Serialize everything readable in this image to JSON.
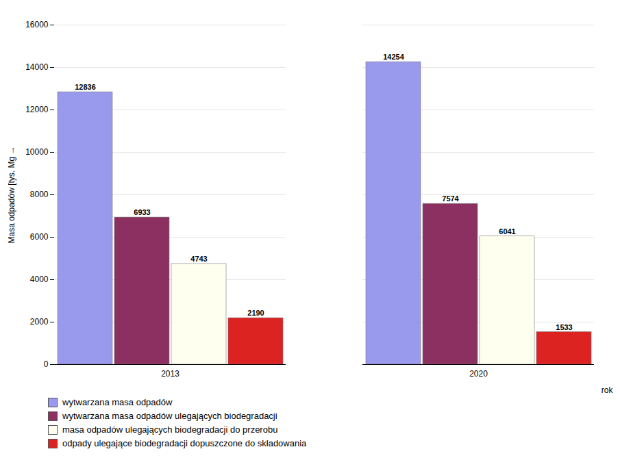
{
  "chart_data": {
    "type": "bar",
    "categories": [
      "2013",
      "2020"
    ],
    "series": [
      {
        "name": "wytwarzana masa odpadów",
        "color": "#9999EE",
        "values": [
          12836,
          14254
        ]
      },
      {
        "name": "wytwarzana masa odpadów ulegających biodegradacji",
        "color": "#8B3060",
        "values": [
          6933,
          7574
        ]
      },
      {
        "name": "masa odpadów ulegających biodegradacji do przerobu",
        "color": "#FFFFF0",
        "values": [
          4743,
          6041
        ]
      },
      {
        "name": "odpady ulegające biodegradacji dopuszczone do składowania",
        "color": "#DD2222",
        "values": [
          2190,
          1533
        ]
      }
    ],
    "ylabel": "Masa odpadów [tys. Mg",
    "xlabel": "rok",
    "ylim": [
      0,
      16000
    ],
    "yticks": [
      0,
      2000,
      4000,
      6000,
      8000,
      10000,
      12000,
      14000,
      16000
    ],
    "grid": true,
    "legend": "bottom",
    "data_labels": true
  }
}
